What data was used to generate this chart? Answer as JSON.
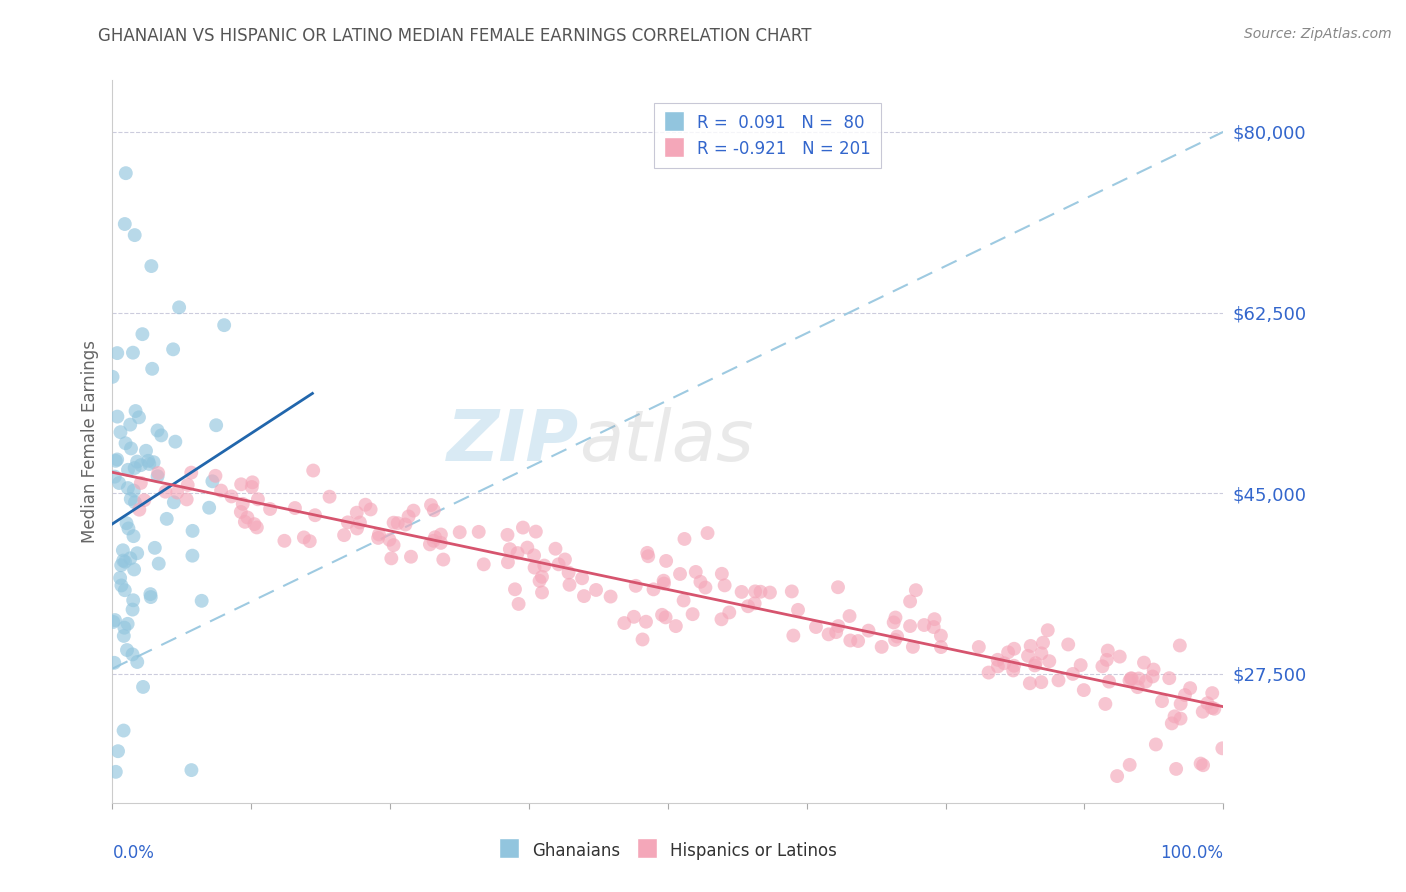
{
  "title": "GHANAIAN VS HISPANIC OR LATINO MEDIAN FEMALE EARNINGS CORRELATION CHART",
  "source": "Source: ZipAtlas.com",
  "ylabel": "Median Female Earnings",
  "ymin": 15000,
  "ymax": 85000,
  "xmin": 0,
  "xmax": 100,
  "ytick_positions": [
    27500,
    45000,
    62500,
    80000
  ],
  "ytick_labels": [
    "$27,500",
    "$45,000",
    "$62,500",
    "$80,000"
  ],
  "ghanaian_color": "#92c5de",
  "hispanic_color": "#f4a7b9",
  "ghanaian_trend_color": "#2166ac",
  "hispanic_trend_color": "#d6546e",
  "ref_line_color": "#9ecae1",
  "watermark_zip": "ZIP",
  "watermark_atlas": "atlas",
  "title_color": "#555555",
  "axis_label_color": "#3366cc",
  "legend_text_color": "#333399",
  "legend_value_color": "#3366cc",
  "background_color": "#ffffff",
  "ghanaian_N": 80,
  "hispanic_N": 201,
  "seed": 7
}
